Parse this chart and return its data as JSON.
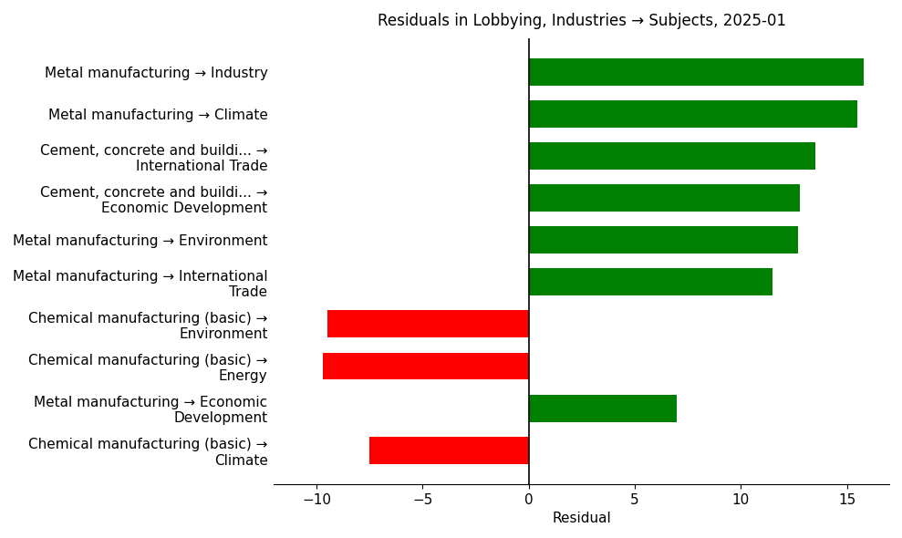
{
  "title": "Residuals in Lobbying, Industries → Subjects, 2025-01",
  "xlabel": "Residual",
  "categories": [
    "Metal manufacturing → Industry",
    "Metal manufacturing → Climate",
    "Cement, concrete and buildi... →\nInternational Trade",
    "Cement, concrete and buildi... →\nEconomic Development",
    "Metal manufacturing → Environment",
    "Metal manufacturing → International\nTrade",
    "Chemical manufacturing (basic) →\nEnvironment",
    "Chemical manufacturing (basic) →\nEnergy",
    "Metal manufacturing → Economic\nDevelopment",
    "Chemical manufacturing (basic) →\nClimate"
  ],
  "values": [
    15.8,
    15.5,
    13.5,
    12.8,
    12.7,
    11.5,
    -9.5,
    -9.7,
    7.0,
    -7.5
  ],
  "colors": [
    "#008000",
    "#008000",
    "#008000",
    "#008000",
    "#008000",
    "#008000",
    "#ff0000",
    "#ff0000",
    "#008000",
    "#ff0000"
  ],
  "xlim": [
    -12,
    17
  ],
  "xticks": [
    -10,
    -5,
    0,
    5,
    10,
    15
  ],
  "figsize": [
    9.89,
    5.9
  ],
  "dpi": 100,
  "title_fontsize": 12,
  "axis_label_fontsize": 11,
  "tick_fontsize": 11,
  "bar_height": 0.65
}
